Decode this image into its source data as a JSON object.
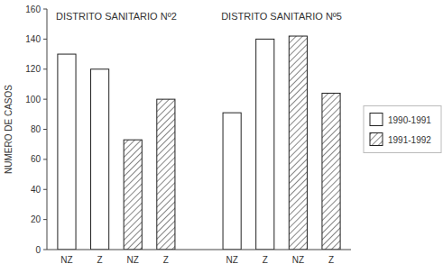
{
  "chart_data": {
    "type": "bar",
    "y_label": "NUMERO DE CASOS",
    "annotations": [
      {
        "text": "DISTRITO SANITARIO Nº2"
      },
      {
        "text": "DISTRITO SANITARIO Nº5"
      }
    ],
    "categories": [
      "NZ",
      "Z",
      "NZ",
      "Z",
      "NZ",
      "Z",
      "NZ",
      "Z"
    ],
    "series": [
      {
        "name": "1990-1991",
        "color": "#ffffff",
        "values": [
          130,
          120,
          null,
          null,
          91,
          140,
          null,
          null
        ]
      },
      {
        "name": "1991-1992",
        "color": "#ffffff",
        "values": [
          null,
          null,
          73,
          100,
          null,
          null,
          142,
          104
        ]
      }
    ],
    "ylim": [
      0,
      160
    ],
    "yticks": [
      0,
      20,
      40,
      60,
      80,
      100,
      120,
      140,
      160
    ],
    "grid": false,
    "legend": "right"
  }
}
